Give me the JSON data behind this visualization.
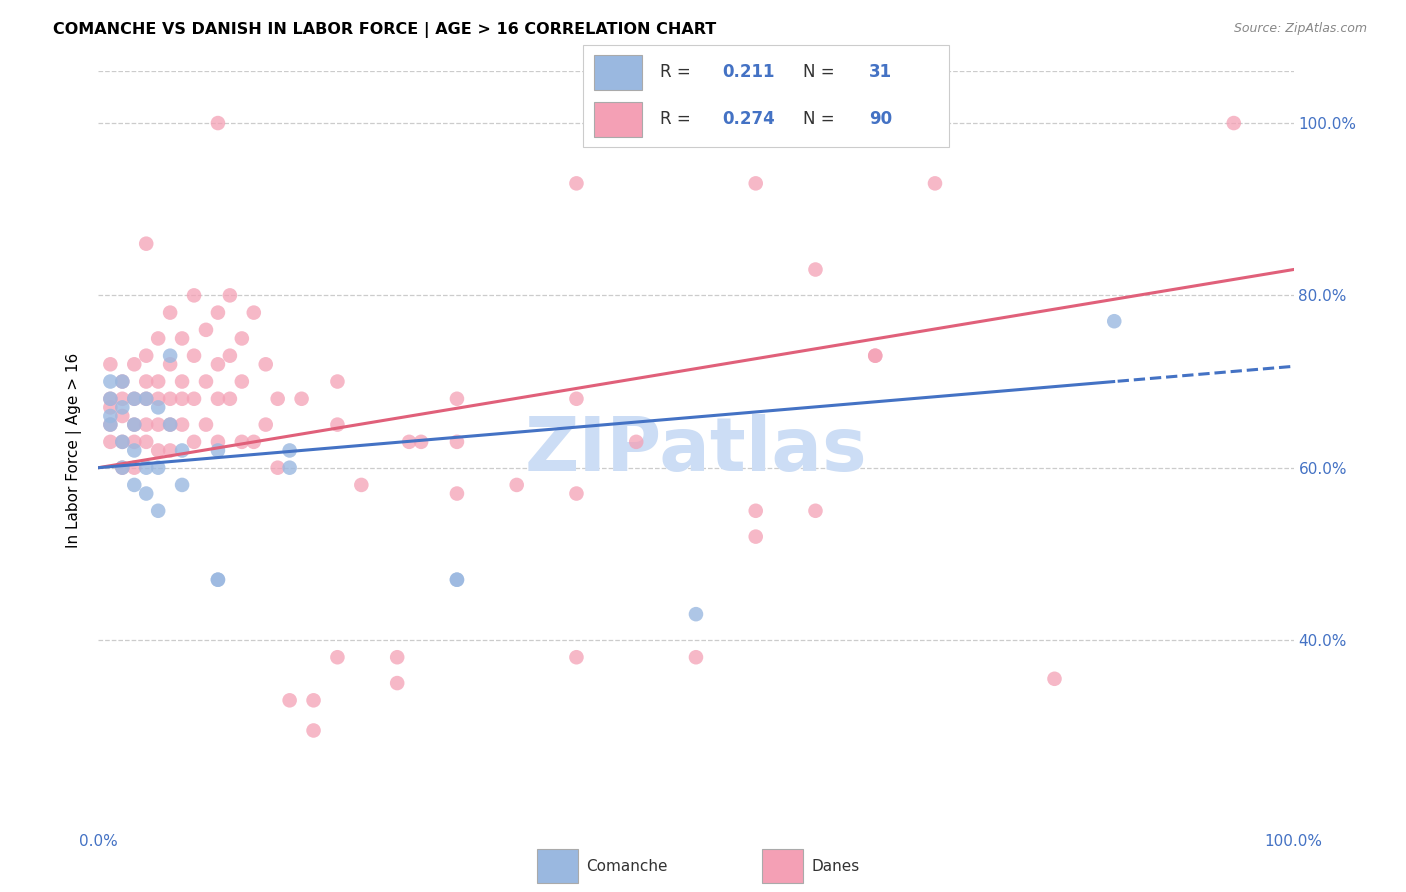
{
  "title": "COMANCHE VS DANISH IN LABOR FORCE | AGE > 16 CORRELATION CHART",
  "source": "Source: ZipAtlas.com",
  "ylabel": "In Labor Force | Age > 16",
  "xlim": [
    0.0,
    1.0
  ],
  "ylim": [
    0.18,
    1.06
  ],
  "ytick_labels": [
    "40.0%",
    "60.0%",
    "80.0%",
    "100.0%"
  ],
  "ytick_values": [
    0.4,
    0.6,
    0.8,
    1.0
  ],
  "comanche_color": "#9ab8e0",
  "danes_color": "#f4a0b5",
  "comanche_line_color": "#4472c4",
  "danes_line_color": "#e0607a",
  "watermark": "ZIPatlas",
  "watermark_color": "#ccddf5",
  "comanche_R": 0.211,
  "comanche_N": 31,
  "danes_R": 0.274,
  "danes_N": 90,
  "comanche_points": [
    [
      0.01,
      0.68
    ],
    [
      0.01,
      0.66
    ],
    [
      0.01,
      0.7
    ],
    [
      0.01,
      0.65
    ],
    [
      0.02,
      0.67
    ],
    [
      0.02,
      0.63
    ],
    [
      0.02,
      0.7
    ],
    [
      0.02,
      0.6
    ],
    [
      0.03,
      0.68
    ],
    [
      0.03,
      0.62
    ],
    [
      0.03,
      0.58
    ],
    [
      0.03,
      0.65
    ],
    [
      0.04,
      0.68
    ],
    [
      0.04,
      0.6
    ],
    [
      0.04,
      0.57
    ],
    [
      0.05,
      0.67
    ],
    [
      0.05,
      0.6
    ],
    [
      0.05,
      0.55
    ],
    [
      0.06,
      0.65
    ],
    [
      0.06,
      0.73
    ],
    [
      0.07,
      0.62
    ],
    [
      0.07,
      0.58
    ],
    [
      0.1,
      0.62
    ],
    [
      0.1,
      0.47
    ],
    [
      0.1,
      0.47
    ],
    [
      0.16,
      0.62
    ],
    [
      0.16,
      0.6
    ],
    [
      0.3,
      0.47
    ],
    [
      0.3,
      0.47
    ],
    [
      0.5,
      0.43
    ],
    [
      0.85,
      0.77
    ]
  ],
  "danes_points": [
    [
      0.01,
      0.68
    ],
    [
      0.01,
      0.72
    ],
    [
      0.01,
      0.67
    ],
    [
      0.01,
      0.65
    ],
    [
      0.01,
      0.63
    ],
    [
      0.02,
      0.7
    ],
    [
      0.02,
      0.68
    ],
    [
      0.02,
      0.66
    ],
    [
      0.02,
      0.63
    ],
    [
      0.02,
      0.6
    ],
    [
      0.03,
      0.72
    ],
    [
      0.03,
      0.68
    ],
    [
      0.03,
      0.65
    ],
    [
      0.03,
      0.63
    ],
    [
      0.03,
      0.6
    ],
    [
      0.04,
      0.86
    ],
    [
      0.04,
      0.73
    ],
    [
      0.04,
      0.7
    ],
    [
      0.04,
      0.68
    ],
    [
      0.04,
      0.65
    ],
    [
      0.04,
      0.63
    ],
    [
      0.05,
      0.75
    ],
    [
      0.05,
      0.7
    ],
    [
      0.05,
      0.68
    ],
    [
      0.05,
      0.65
    ],
    [
      0.05,
      0.62
    ],
    [
      0.06,
      0.78
    ],
    [
      0.06,
      0.72
    ],
    [
      0.06,
      0.68
    ],
    [
      0.06,
      0.65
    ],
    [
      0.06,
      0.62
    ],
    [
      0.07,
      0.75
    ],
    [
      0.07,
      0.7
    ],
    [
      0.07,
      0.68
    ],
    [
      0.07,
      0.65
    ],
    [
      0.08,
      0.8
    ],
    [
      0.08,
      0.73
    ],
    [
      0.08,
      0.68
    ],
    [
      0.08,
      0.63
    ],
    [
      0.09,
      0.76
    ],
    [
      0.09,
      0.7
    ],
    [
      0.09,
      0.65
    ],
    [
      0.1,
      0.78
    ],
    [
      0.1,
      0.72
    ],
    [
      0.1,
      0.68
    ],
    [
      0.1,
      0.63
    ],
    [
      0.11,
      0.8
    ],
    [
      0.11,
      0.73
    ],
    [
      0.11,
      0.68
    ],
    [
      0.12,
      0.75
    ],
    [
      0.12,
      0.7
    ],
    [
      0.12,
      0.63
    ],
    [
      0.13,
      0.78
    ],
    [
      0.13,
      0.63
    ],
    [
      0.14,
      0.72
    ],
    [
      0.14,
      0.65
    ],
    [
      0.15,
      0.68
    ],
    [
      0.15,
      0.6
    ],
    [
      0.16,
      0.33
    ],
    [
      0.17,
      0.68
    ],
    [
      0.18,
      0.295
    ],
    [
      0.18,
      0.33
    ],
    [
      0.2,
      0.7
    ],
    [
      0.2,
      0.65
    ],
    [
      0.2,
      0.38
    ],
    [
      0.22,
      0.58
    ],
    [
      0.25,
      0.38
    ],
    [
      0.25,
      0.35
    ],
    [
      0.26,
      0.63
    ],
    [
      0.27,
      0.63
    ],
    [
      0.3,
      0.68
    ],
    [
      0.3,
      0.63
    ],
    [
      0.3,
      0.57
    ],
    [
      0.35,
      0.58
    ],
    [
      0.4,
      0.68
    ],
    [
      0.4,
      0.57
    ],
    [
      0.4,
      0.38
    ],
    [
      0.45,
      0.63
    ],
    [
      0.5,
      0.38
    ],
    [
      0.55,
      0.55
    ],
    [
      0.55,
      0.52
    ],
    [
      0.6,
      0.83
    ],
    [
      0.6,
      0.55
    ],
    [
      0.65,
      0.73
    ],
    [
      0.65,
      0.73
    ],
    [
      0.7,
      0.93
    ],
    [
      0.8,
      0.355
    ],
    [
      0.95,
      1.0
    ],
    [
      0.55,
      0.93
    ],
    [
      0.4,
      0.93
    ],
    [
      0.1,
      1.0
    ]
  ]
}
